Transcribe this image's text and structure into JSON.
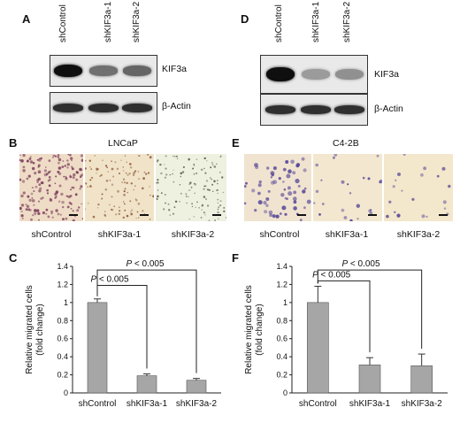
{
  "panels": {
    "A": {
      "letter": "A",
      "lanes": [
        "shControl",
        "shKIF3a-1",
        "shKIF3a-2"
      ],
      "blots": [
        {
          "label": "KIF3a",
          "intensities": [
            1.0,
            0.55,
            0.6
          ]
        },
        {
          "label": "β-Actin",
          "intensities": [
            0.85,
            0.85,
            0.85
          ]
        }
      ]
    },
    "D": {
      "letter": "D",
      "lanes": [
        "shControl",
        "shKIF3a-1",
        "shKIF3a-2"
      ],
      "blots": [
        {
          "label": "KIF3a",
          "intensities": [
            1.0,
            0.35,
            0.4
          ]
        },
        {
          "label": "β-Actin",
          "intensities": [
            0.85,
            0.85,
            0.85
          ]
        }
      ]
    },
    "B": {
      "letter": "B",
      "title": "LNCaP",
      "labels": [
        "shControl",
        "shKIF3a-1",
        "shKIF3a-2"
      ]
    },
    "E": {
      "letter": "E",
      "title": "C4-2B",
      "labels": [
        "shControl",
        "shKIF3a-1",
        "shKIF3a-2"
      ]
    },
    "C": {
      "letter": "C"
    },
    "F": {
      "letter": "F"
    }
  },
  "chart_data": [
    {
      "type": "bar",
      "panel": "C",
      "categories": [
        "shControl",
        "shKIF3a-1",
        "shKIF3a-2"
      ],
      "values": [
        1.0,
        0.19,
        0.14
      ],
      "errors": [
        0.04,
        0.02,
        0.02
      ],
      "ylabel_line1": "Relative migrated cells",
      "ylabel_line2": "(fold change)",
      "ylim": [
        0,
        1.4
      ],
      "yticks": [
        0,
        0.2,
        0.4,
        0.6,
        0.8,
        1,
        1.2,
        1.4
      ],
      "bar_color": "#a6a6a6",
      "annotations": [
        {
          "from": 0,
          "to": 1,
          "label_italic": "P",
          "label_rest": " < 0.005"
        },
        {
          "from": 0,
          "to": 2,
          "label_italic": "P",
          "label_rest": " < 0.005"
        }
      ]
    },
    {
      "type": "bar",
      "panel": "F",
      "categories": [
        "shControl",
        "shKIF3a-1",
        "shKIF3a-2"
      ],
      "values": [
        1.0,
        0.31,
        0.3
      ],
      "errors": [
        0.18,
        0.08,
        0.13
      ],
      "ylabel_line1": "Relative migrated cells",
      "ylabel_line2": "(fold change)",
      "ylim": [
        0,
        1.4
      ],
      "yticks": [
        0,
        0.2,
        0.4,
        0.6,
        0.8,
        1,
        1.2,
        1.4
      ],
      "bar_color": "#a6a6a6",
      "annotations": [
        {
          "from": 0,
          "to": 1,
          "label_italic": "P",
          "label_rest": " < 0.005"
        },
        {
          "from": 0,
          "to": 2,
          "label_italic": "P",
          "label_rest": " < 0.005"
        }
      ]
    }
  ]
}
